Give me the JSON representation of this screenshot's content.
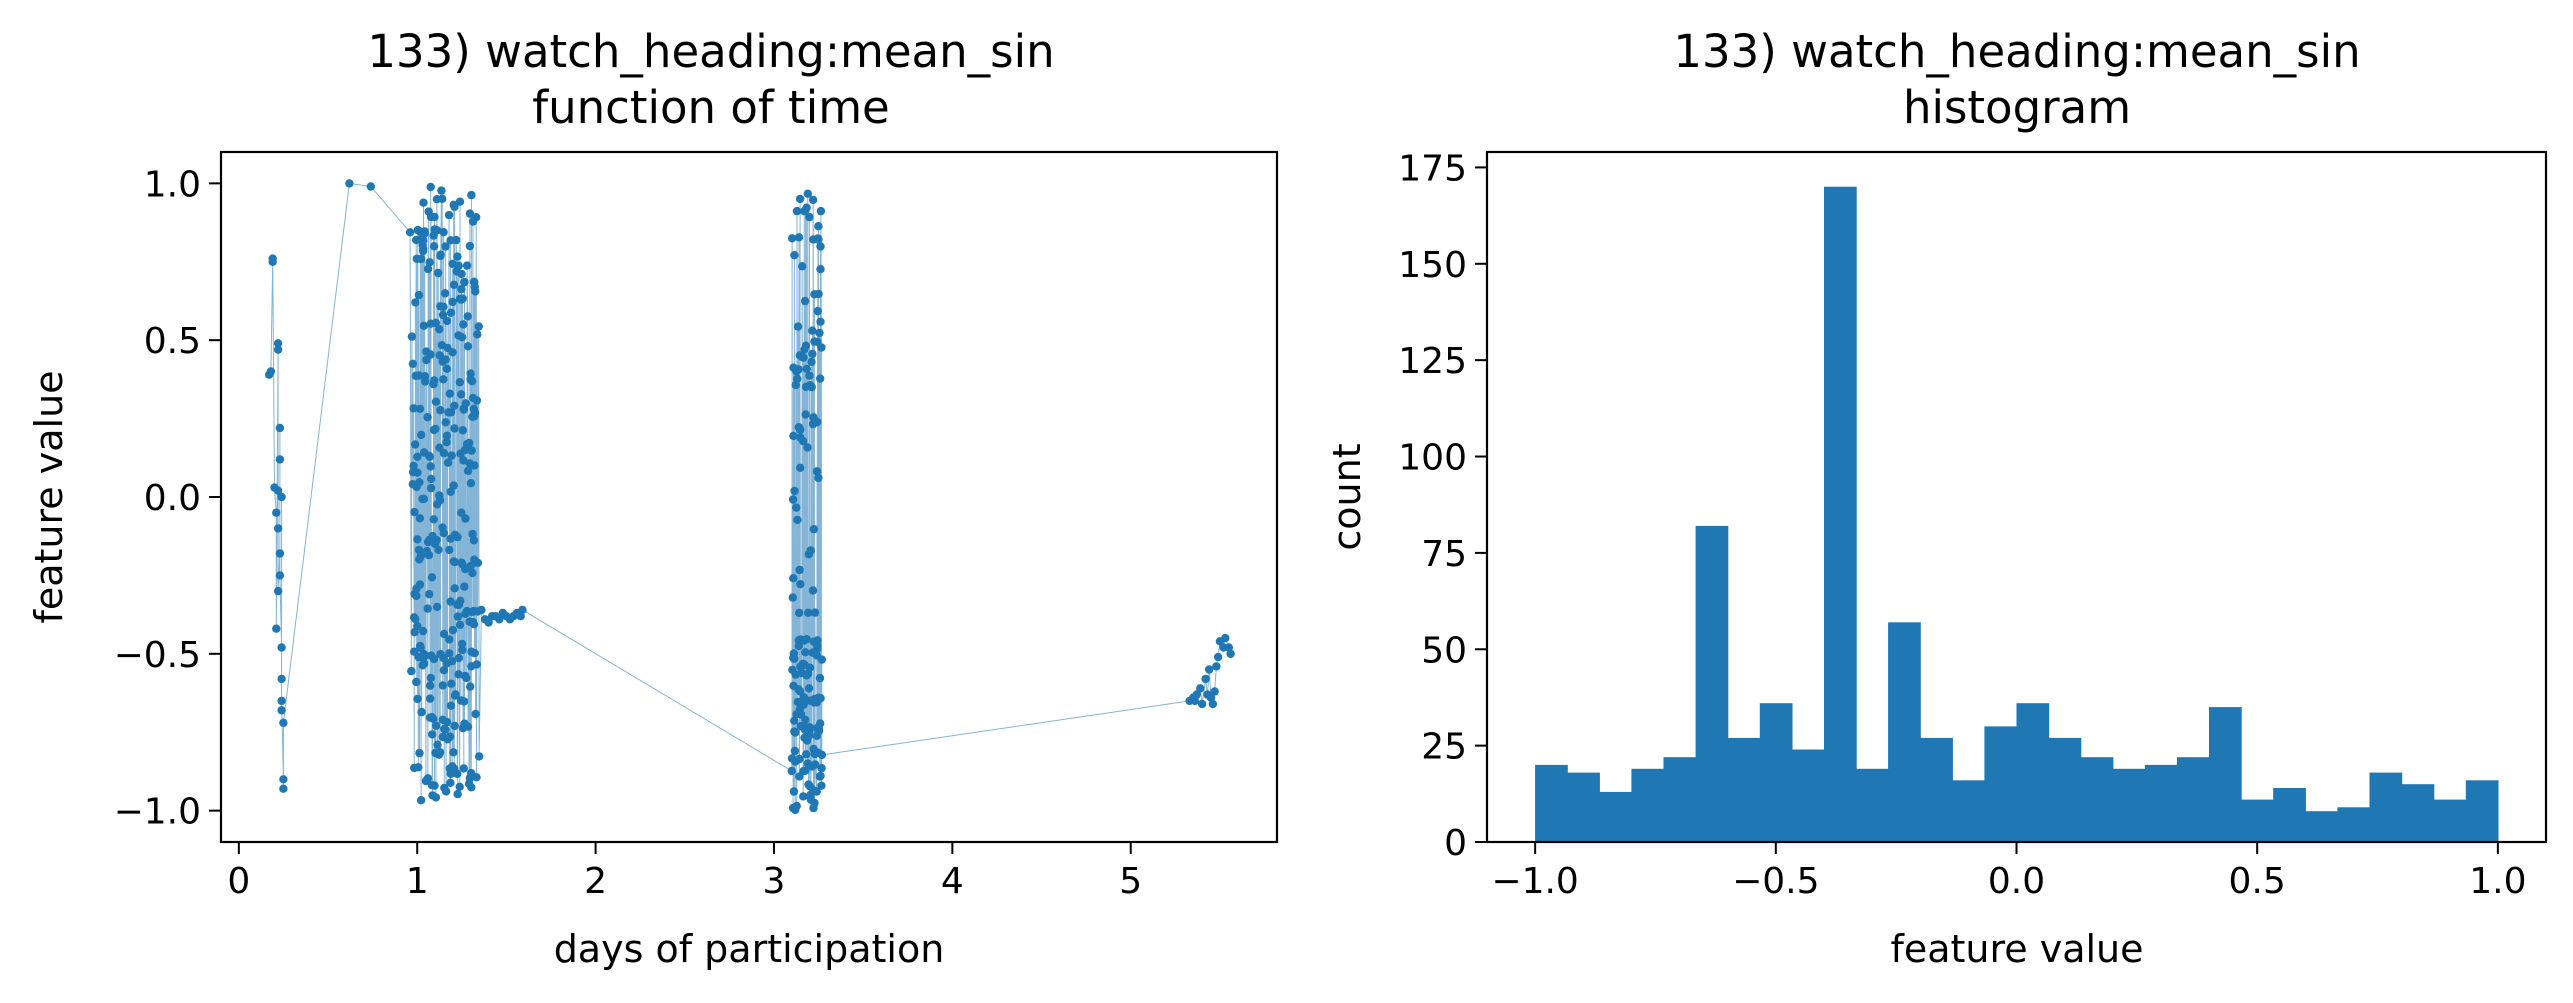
{
  "chart_data": [
    {
      "type": "scatter",
      "title": "133) watch_heading:mean_sin",
      "subtitle": "function of time",
      "xlabel": "days of participation",
      "ylabel": "feature value",
      "xlim": [
        -0.1,
        5.82
      ],
      "ylim": [
        -1.1,
        1.1
      ],
      "xticks": [
        "0",
        "1",
        "2",
        "3",
        "4",
        "5"
      ],
      "yticks": [
        "−1.0",
        "−0.5",
        "0.0",
        "0.5",
        "1.0"
      ],
      "grid": false,
      "color": "#1f77b4",
      "clusters": [
        {
          "x_range": [
            0.16,
            0.26
          ],
          "points": [
            [
              0.17,
              0.39
            ],
            [
              0.18,
              0.4
            ],
            [
              0.19,
              0.75
            ],
            [
              0.19,
              0.76
            ],
            [
              0.2,
              0.03
            ],
            [
              0.21,
              -0.05
            ],
            [
              0.21,
              -0.42
            ],
            [
              0.22,
              0.47
            ],
            [
              0.22,
              0.49
            ],
            [
              0.22,
              0.02
            ],
            [
              0.22,
              -0.1
            ],
            [
              0.23,
              -0.18
            ],
            [
              0.23,
              0.22
            ],
            [
              0.23,
              0.12
            ],
            [
              0.24,
              -0.48
            ],
            [
              0.24,
              -0.58
            ],
            [
              0.24,
              -0.68
            ],
            [
              0.25,
              -0.9
            ],
            [
              0.25,
              -0.93
            ],
            [
              0.24,
              0.0
            ],
            [
              0.23,
              -0.25
            ],
            [
              0.22,
              -0.3
            ],
            [
              0.24,
              -0.65
            ],
            [
              0.25,
              -0.72
            ]
          ]
        },
        {
          "x_range": [
            0.62,
            0.75
          ],
          "points": [
            [
              0.62,
              1.0
            ],
            [
              0.74,
              0.99
            ]
          ]
        },
        {
          "x_range": [
            0.97,
            1.34
          ],
          "dense": true,
          "count": 320
        },
        {
          "x_range": [
            1.3,
            1.6
          ],
          "points": [
            [
              1.3,
              -0.22
            ],
            [
              1.32,
              -0.2
            ],
            [
              1.34,
              -0.21
            ],
            [
              1.36,
              -0.36
            ],
            [
              1.38,
              -0.39
            ],
            [
              1.4,
              -0.4
            ],
            [
              1.42,
              -0.38
            ],
            [
              1.44,
              -0.38
            ],
            [
              1.46,
              -0.39
            ],
            [
              1.48,
              -0.37
            ],
            [
              1.5,
              -0.38
            ],
            [
              1.52,
              -0.39
            ],
            [
              1.54,
              -0.38
            ],
            [
              1.56,
              -0.37
            ],
            [
              1.58,
              -0.38
            ],
            [
              1.59,
              -0.36
            ]
          ]
        },
        {
          "x_range": [
            3.1,
            3.27
          ],
          "dense": true,
          "count": 170
        },
        {
          "x_range": [
            3.25,
            5.36
          ],
          "points": [
            [
              3.25,
              -0.64
            ],
            [
              5.36,
              -0.65
            ]
          ]
        },
        {
          "x_range": [
            5.33,
            5.57
          ],
          "points": [
            [
              5.33,
              -0.65
            ],
            [
              5.35,
              -0.64
            ],
            [
              5.37,
              -0.63
            ],
            [
              5.39,
              -0.61
            ],
            [
              5.4,
              -0.66
            ],
            [
              5.42,
              -0.58
            ],
            [
              5.43,
              -0.63
            ],
            [
              5.44,
              -0.55
            ],
            [
              5.45,
              -0.64
            ],
            [
              5.46,
              -0.66
            ],
            [
              5.47,
              -0.62
            ],
            [
              5.48,
              -0.54
            ],
            [
              5.49,
              -0.51
            ],
            [
              5.5,
              -0.46
            ],
            [
              5.52,
              -0.48
            ],
            [
              5.53,
              -0.45
            ],
            [
              5.55,
              -0.48
            ],
            [
              5.56,
              -0.5
            ]
          ]
        }
      ]
    },
    {
      "type": "bar",
      "title": "133) watch_heading:mean_sin",
      "subtitle": "histogram",
      "xlabel": "feature value",
      "ylabel": "count",
      "bins": 30,
      "bin_range": [
        -1.0,
        1.0
      ],
      "xlim": [
        -1.1,
        1.1
      ],
      "ylim": [
        0,
        179
      ],
      "xticks": [
        "−1.0",
        "−0.5",
        "0.0",
        "0.5",
        "1.0"
      ],
      "xtick_values": [
        -1.0,
        -0.5,
        0.0,
        0.5,
        1.0
      ],
      "yticks": [
        "0",
        "25",
        "50",
        "75",
        "100",
        "125",
        "150",
        "175"
      ],
      "ytick_values": [
        0,
        25,
        50,
        75,
        100,
        125,
        150,
        175
      ],
      "values": [
        20,
        18,
        13,
        19,
        22,
        82,
        27,
        36,
        24,
        170,
        19,
        57,
        27,
        16,
        30,
        36,
        27,
        22,
        19,
        20,
        22,
        35,
        11,
        14,
        8,
        9,
        18,
        15,
        11,
        16
      ],
      "grid": false,
      "color": "#1f77b4"
    }
  ]
}
